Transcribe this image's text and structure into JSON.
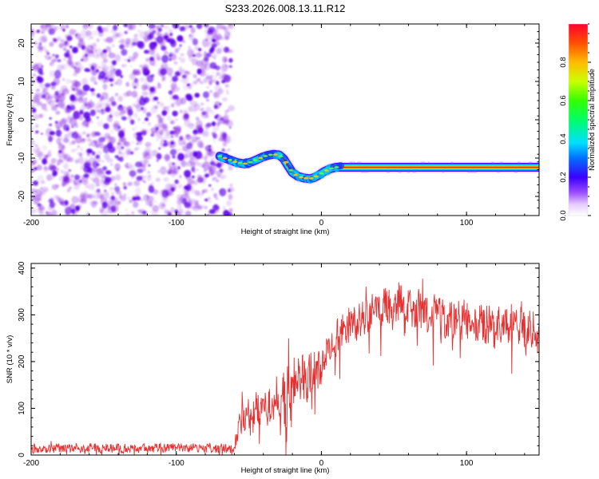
{
  "title": "S233.2026.008.13.11.R12",
  "chart_data": [
    {
      "type": "heatmap",
      "xlabel": "Height of straight line (km)",
      "ylabel": "Frequency (Hz)",
      "xlim": [
        -200,
        150
      ],
      "ylim": [
        -25,
        25
      ],
      "xticks": [
        -200,
        -100,
        0,
        100
      ],
      "yticks": [
        -20,
        -10,
        0,
        10,
        20
      ],
      "noise_region": {
        "x": [
          -200,
          -62
        ],
        "y": [
          -25,
          25
        ],
        "color": "#8a2be2"
      },
      "trace_x": [
        -70,
        -63,
        -58,
        -53,
        -48,
        -45,
        -41,
        -37,
        -33,
        -29,
        -26,
        -23,
        -20,
        -16,
        -12,
        -8,
        -5,
        -2,
        2,
        6,
        10,
        20,
        40,
        60,
        80,
        100,
        120,
        150
      ],
      "trace_freq": [
        -9.5,
        -10.5,
        -11.2,
        -11.5,
        -11.0,
        -10.5,
        -9.8,
        -9.3,
        -9.0,
        -9.2,
        -10.2,
        -12.0,
        -13.8,
        -14.8,
        -15.2,
        -15.4,
        -15.1,
        -14.5,
        -13.5,
        -12.8,
        -12.4,
        -12.4,
        -12.4,
        -12.4,
        -12.4,
        -12.4,
        -12.4,
        -12.4
      ],
      "colorbar": {
        "label": "Normalized spectral amplitude",
        "range": [
          0,
          1
        ],
        "ticks": [
          "0.0",
          "0.2",
          "0.4",
          "0.6",
          "0.8"
        ],
        "tick_values": [
          0,
          0.2,
          0.4,
          0.6,
          0.8
        ]
      }
    },
    {
      "type": "line",
      "xlabel": "Height of straight line (km)",
      "ylabel": "SNR (10 * v/v)",
      "xlim": [
        -200,
        150
      ],
      "ylim": [
        0,
        410
      ],
      "xticks": [
        -200,
        -100,
        0,
        100
      ],
      "yticks": [
        0,
        100,
        200,
        300,
        400
      ],
      "color": "#e83030",
      "envelope_x": [
        -200,
        -60,
        -58,
        -55,
        -50,
        -40,
        -30,
        -20,
        -10,
        0,
        5,
        10,
        20,
        30,
        40,
        45,
        50,
        60,
        70,
        80,
        90,
        100,
        110,
        120,
        130,
        140,
        150
      ],
      "envelope_mean": [
        15,
        15,
        50,
        80,
        90,
        100,
        125,
        150,
        165,
        190,
        225,
        250,
        280,
        290,
        305,
        320,
        330,
        315,
        305,
        300,
        285,
        285,
        280,
        270,
        280,
        270,
        270
      ],
      "envelope_spread": [
        10,
        10,
        25,
        30,
        35,
        40,
        55,
        60,
        50,
        45,
        35,
        35,
        40,
        45,
        40,
        45,
        45,
        45,
        40,
        45,
        45,
        45,
        45,
        50,
        45,
        45,
        45
      ]
    }
  ]
}
